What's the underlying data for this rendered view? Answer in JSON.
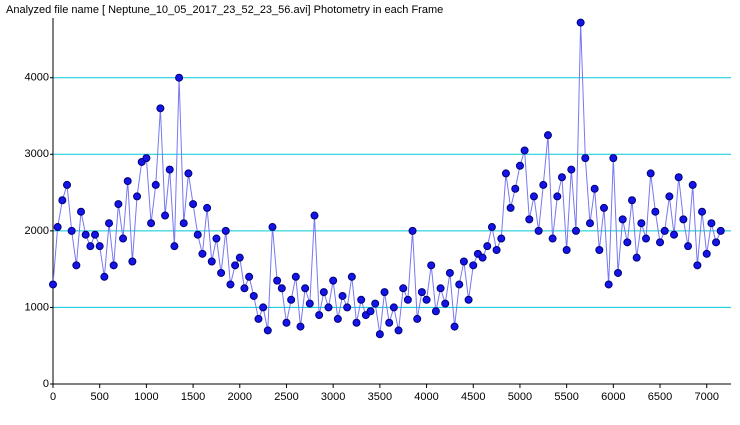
{
  "chart_data": {
    "type": "line",
    "title": "Analyzed file name [ Neptune_10_05_2017_23_52_23_56.avi]   Photometry in each Frame",
    "x": [
      0,
      50,
      100,
      150,
      200,
      250,
      300,
      350,
      400,
      450,
      500,
      550,
      600,
      650,
      700,
      750,
      800,
      850,
      900,
      950,
      1000,
      1050,
      1100,
      1150,
      1200,
      1250,
      1300,
      1350,
      1400,
      1450,
      1500,
      1550,
      1600,
      1650,
      1700,
      1750,
      1800,
      1850,
      1900,
      1950,
      2000,
      2050,
      2100,
      2150,
      2200,
      2250,
      2300,
      2350,
      2400,
      2450,
      2500,
      2550,
      2600,
      2650,
      2700,
      2750,
      2800,
      2850,
      2900,
      2950,
      3000,
      3050,
      3100,
      3150,
      3200,
      3250,
      3300,
      3350,
      3400,
      3450,
      3500,
      3550,
      3600,
      3650,
      3700,
      3750,
      3800,
      3850,
      3900,
      3950,
      4000,
      4050,
      4100,
      4150,
      4200,
      4250,
      4300,
      4350,
      4400,
      4450,
      4500,
      4550,
      4600,
      4650,
      4700,
      4750,
      4800,
      4850,
      4900,
      4950,
      5000,
      5050,
      5100,
      5150,
      5200,
      5250,
      5300,
      5350,
      5400,
      5450,
      5500,
      5550,
      5600,
      5650,
      5700,
      5750,
      5800,
      5850,
      5900,
      5950,
      6000,
      6050,
      6100,
      6150,
      6200,
      6250,
      6300,
      6350,
      6400,
      6450,
      6500,
      6550,
      6600,
      6650,
      6700,
      6750,
      6800,
      6850,
      6900,
      6950,
      7000,
      7050,
      7100,
      7150
    ],
    "series": [
      {
        "color": "#1414e6",
        "values": [
          1300,
          2050,
          2400,
          2600,
          2000,
          1550,
          2250,
          1950,
          1800,
          1950,
          1800,
          1400,
          2100,
          1550,
          2350,
          1900,
          2650,
          1600,
          2450,
          2900,
          2950,
          2100,
          2600,
          3600,
          2200,
          2800,
          1800,
          4000,
          2100,
          2750,
          2350,
          1950,
          1700,
          2300,
          1600,
          1900,
          1450,
          2000,
          1300,
          1550,
          1650,
          1250,
          1400,
          1150,
          850,
          1000,
          700,
          2050,
          1350,
          1250,
          800,
          1100,
          1400,
          750,
          1250,
          1050,
          2200,
          900,
          1200,
          1000,
          1350,
          850,
          1150,
          1000,
          1400,
          800,
          1100,
          900,
          950,
          1050,
          650,
          1200,
          800,
          1000,
          700,
          1250,
          1100,
          2000,
          850,
          1200,
          1100,
          1550,
          950,
          1250,
          1050,
          1450,
          750,
          1300,
          1600,
          1100,
          1550,
          1700,
          1650,
          1800,
          2050,
          1750,
          1900,
          2750,
          2300,
          2550,
          2850,
          3050,
          2150,
          2450,
          2000,
          2600,
          3250,
          1900,
          2450,
          2700,
          1750,
          2800,
          2000,
          4720,
          2950,
          2100,
          2550,
          1750,
          2300,
          1300,
          2950,
          1450,
          2150,
          1850,
          2400,
          1650,
          2100,
          1900,
          2750,
          2250,
          1850,
          2000,
          2450,
          1950,
          2700,
          2150,
          1800,
          2600,
          1550,
          2250,
          1700,
          2100,
          1850,
          2000
        ]
      }
    ],
    "xlim": [
      0,
      7260
    ],
    "ylim": [
      0,
      4780
    ],
    "xticks": [
      0,
      500,
      1000,
      1500,
      2000,
      2500,
      3000,
      3500,
      4000,
      4500,
      5000,
      5500,
      6000,
      6500,
      7000
    ],
    "yticks": [
      0,
      1000,
      2000,
      3000,
      4000
    ],
    "grid": true
  }
}
